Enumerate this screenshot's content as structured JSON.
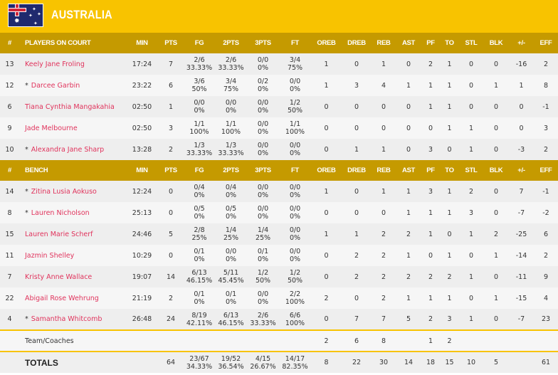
{
  "team": {
    "name": "AUSTRALIA",
    "flag": "australia-flag"
  },
  "colors": {
    "header": "#f8c300",
    "subheader": "#c59a00",
    "player_link": "#e0335c"
  },
  "columns": [
    "MIN",
    "PTS",
    "FG",
    "2PTS",
    "3PTS",
    "FT",
    "OREB",
    "DREB",
    "REB",
    "AST",
    "PF",
    "TO",
    "STL",
    "BLK",
    "+/-",
    "EFF"
  ],
  "starters": {
    "num_label": "#",
    "title": "PLAYERS ON COURT",
    "rows": [
      {
        "num": "13",
        "mark": "",
        "name": "Keely Jane Froling",
        "stats": [
          "17:24",
          "7",
          "2/6|33.33%",
          "2/6|33.33%",
          "0/0|0%",
          "3/4|75%",
          "1",
          "0",
          "1",
          "0",
          "2",
          "1",
          "0",
          "0",
          "-16",
          "2"
        ]
      },
      {
        "num": "12",
        "mark": "*",
        "name": "Darcee Garbin",
        "stats": [
          "23:22",
          "6",
          "3/6|50%",
          "3/4|75%",
          "0/2|0%",
          "0/0|0%",
          "1",
          "3",
          "4",
          "1",
          "1",
          "1",
          "0",
          "1",
          "1",
          "8"
        ]
      },
      {
        "num": "6",
        "mark": "",
        "name": "Tiana Cynthia Mangakahia",
        "stats": [
          "02:50",
          "1",
          "0/0|0%",
          "0/0|0%",
          "0/0|0%",
          "1/2|50%",
          "0",
          "0",
          "0",
          "0",
          "1",
          "1",
          "0",
          "0",
          "0",
          "-1"
        ]
      },
      {
        "num": "9",
        "mark": "",
        "name": "Jade Melbourne",
        "stats": [
          "02:50",
          "3",
          "1/1|100%",
          "1/1|100%",
          "0/0|0%",
          "1/1|100%",
          "0",
          "0",
          "0",
          "0",
          "0",
          "1",
          "1",
          "0",
          "0",
          "3"
        ]
      },
      {
        "num": "10",
        "mark": "*",
        "name": "Alexandra Jane Sharp",
        "stats": [
          "13:28",
          "2",
          "1/3|33.33%",
          "1/3|33.33%",
          "0/0|0%",
          "0/0|0%",
          "0",
          "1",
          "1",
          "0",
          "3",
          "0",
          "1",
          "0",
          "-3",
          "2"
        ]
      }
    ]
  },
  "bench": {
    "num_label": "#",
    "title": "BENCH",
    "rows": [
      {
        "num": "14",
        "mark": "*",
        "name": "Zitina Lusia Aokuso",
        "stats": [
          "12:24",
          "0",
          "0/4|0%",
          "0/4|0%",
          "0/0|0%",
          "0/0|0%",
          "1",
          "0",
          "1",
          "1",
          "3",
          "1",
          "2",
          "0",
          "7",
          "-1"
        ]
      },
      {
        "num": "8",
        "mark": "*",
        "name": "Lauren Nicholson",
        "stats": [
          "25:13",
          "0",
          "0/5|0%",
          "0/5|0%",
          "0/0|0%",
          "0/0|0%",
          "0",
          "0",
          "0",
          "1",
          "1",
          "1",
          "3",
          "0",
          "-7",
          "-2"
        ]
      },
      {
        "num": "15",
        "mark": "",
        "name": "Lauren Marie Scherf",
        "stats": [
          "24:46",
          "5",
          "2/8|25%",
          "1/4|25%",
          "1/4|25%",
          "0/0|0%",
          "1",
          "1",
          "2",
          "2",
          "1",
          "0",
          "1",
          "2",
          "-25",
          "6"
        ]
      },
      {
        "num": "11",
        "mark": "",
        "name": "Jazmin Shelley",
        "stats": [
          "10:29",
          "0",
          "0/1|0%",
          "0/0|0%",
          "0/1|0%",
          "0/0|0%",
          "0",
          "2",
          "2",
          "1",
          "0",
          "1",
          "0",
          "1",
          "-14",
          "2"
        ]
      },
      {
        "num": "7",
        "mark": "",
        "name": "Kristy Anne Wallace",
        "stats": [
          "19:07",
          "14",
          "6/13|46.15%",
          "5/11|45.45%",
          "1/2|50%",
          "1/2|50%",
          "0",
          "2",
          "2",
          "2",
          "2",
          "2",
          "1",
          "0",
          "-11",
          "9"
        ]
      },
      {
        "num": "22",
        "mark": "",
        "name": "Abigail Rose Wehrung",
        "stats": [
          "21:19",
          "2",
          "0/1|0%",
          "0/1|0%",
          "0/0|0%",
          "2/2|100%",
          "2",
          "0",
          "2",
          "1",
          "1",
          "1",
          "0",
          "1",
          "-15",
          "4"
        ]
      },
      {
        "num": "4",
        "mark": "*",
        "name": "Samantha Whitcomb",
        "stats": [
          "26:48",
          "24",
          "8/19|42.11%",
          "6/13|46.15%",
          "2/6|33.33%",
          "6/6|100%",
          "0",
          "7",
          "7",
          "5",
          "2",
          "3",
          "1",
          "0",
          "-7",
          "23"
        ]
      }
    ]
  },
  "team_coaches": {
    "label": "Team/Coaches",
    "stats": [
      "",
      "",
      "",
      "",
      "",
      "",
      "2",
      "6",
      "8",
      "",
      "1",
      "2",
      "",
      "",
      "",
      ""
    ]
  },
  "totals": {
    "label": "TOTALS",
    "stats": [
      "",
      "64",
      "23/67|34.33%",
      "19/52|36.54%",
      "4/15|26.67%",
      "14/17|82.35%",
      "8",
      "22",
      "30",
      "14",
      "18",
      "15",
      "10",
      "5",
      "",
      "61"
    ]
  }
}
